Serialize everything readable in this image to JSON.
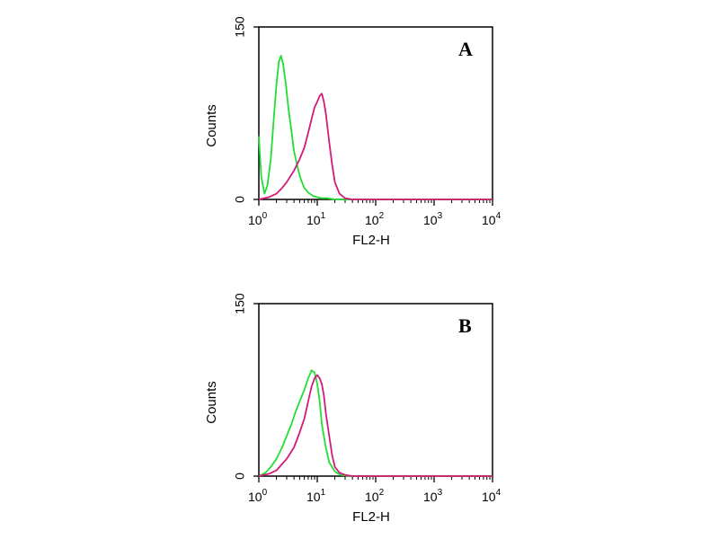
{
  "colors": {
    "green": "#22dd33",
    "magenta": "#d4197a",
    "axis": "#000000"
  },
  "chart_data": [
    {
      "type": "line",
      "panel": "A",
      "xscale": "log",
      "xlim": [
        1,
        10000
      ],
      "ylim": [
        0,
        150
      ],
      "xlabel": "FL2-H",
      "ylabel": "Counts",
      "x_tick_labels": [
        {
          "base": "10",
          "exp": "0"
        },
        {
          "base": "10",
          "exp": "1"
        },
        {
          "base": "10",
          "exp": "2"
        },
        {
          "base": "10",
          "exp": "3"
        },
        {
          "base": "10",
          "exp": "4"
        }
      ],
      "y_tick_labels": [
        "0",
        "150"
      ],
      "series": [
        {
          "color": "green",
          "x": [
            1.0,
            1.1,
            1.25,
            1.4,
            1.6,
            1.8,
            2.0,
            2.2,
            2.4,
            2.6,
            2.9,
            3.2,
            3.6,
            4.0,
            4.6,
            5.2,
            6.0,
            7.0,
            8.5,
            10,
            12,
            15,
            20,
            30,
            100,
            10000
          ],
          "y": [
            55,
            20,
            5,
            12,
            35,
            70,
            100,
            120,
            125,
            118,
            100,
            80,
            60,
            42,
            28,
            18,
            10,
            6,
            3,
            2,
            1,
            1,
            0,
            0,
            0,
            0
          ]
        },
        {
          "color": "magenta",
          "x": [
            1.0,
            1.5,
            2.0,
            2.5,
            3.0,
            4.0,
            5.0,
            6.0,
            7.0,
            8.0,
            9.0,
            10.0,
            11.0,
            12.0,
            13.0,
            14.0,
            16.0,
            18.0,
            20.0,
            24.0,
            30.0,
            40.0,
            60.0,
            10000
          ],
          "y": [
            0,
            2,
            5,
            10,
            15,
            25,
            35,
            45,
            58,
            70,
            80,
            85,
            90,
            92,
            85,
            75,
            50,
            30,
            15,
            5,
            1,
            0,
            0,
            0
          ]
        }
      ]
    },
    {
      "type": "line",
      "panel": "B",
      "xscale": "log",
      "xlim": [
        1,
        10000
      ],
      "ylim": [
        0,
        150
      ],
      "xlabel": "FL2-H",
      "ylabel": "Counts",
      "x_tick_labels": [
        {
          "base": "10",
          "exp": "0"
        },
        {
          "base": "10",
          "exp": "1"
        },
        {
          "base": "10",
          "exp": "2"
        },
        {
          "base": "10",
          "exp": "3"
        },
        {
          "base": "10",
          "exp": "4"
        }
      ],
      "y_tick_labels": [
        "0",
        "150"
      ],
      "series": [
        {
          "color": "green",
          "x": [
            1.0,
            1.3,
            1.6,
            2.0,
            2.5,
            3.0,
            3.6,
            4.2,
            5.0,
            6.0,
            7.0,
            8.0,
            9.0,
            10.0,
            11.0,
            12.0,
            14.0,
            16.0,
            20.0,
            25.0,
            35.0,
            10000
          ],
          "y": [
            0,
            3,
            8,
            15,
            25,
            35,
            45,
            55,
            65,
            75,
            85,
            92,
            90,
            80,
            65,
            45,
            25,
            12,
            4,
            1,
            0,
            0
          ]
        },
        {
          "color": "magenta",
          "x": [
            1.0,
            1.5,
            2.0,
            3.0,
            4.0,
            5.0,
            6.0,
            7.0,
            8.0,
            9.0,
            10.0,
            11.0,
            12.0,
            13.0,
            14.0,
            16.0,
            18.0,
            20.0,
            24.0,
            30.0,
            40.0,
            10000
          ],
          "y": [
            0,
            2,
            5,
            15,
            25,
            38,
            50,
            65,
            78,
            85,
            88,
            85,
            80,
            70,
            55,
            35,
            18,
            8,
            3,
            1,
            0,
            0
          ]
        }
      ]
    }
  ]
}
